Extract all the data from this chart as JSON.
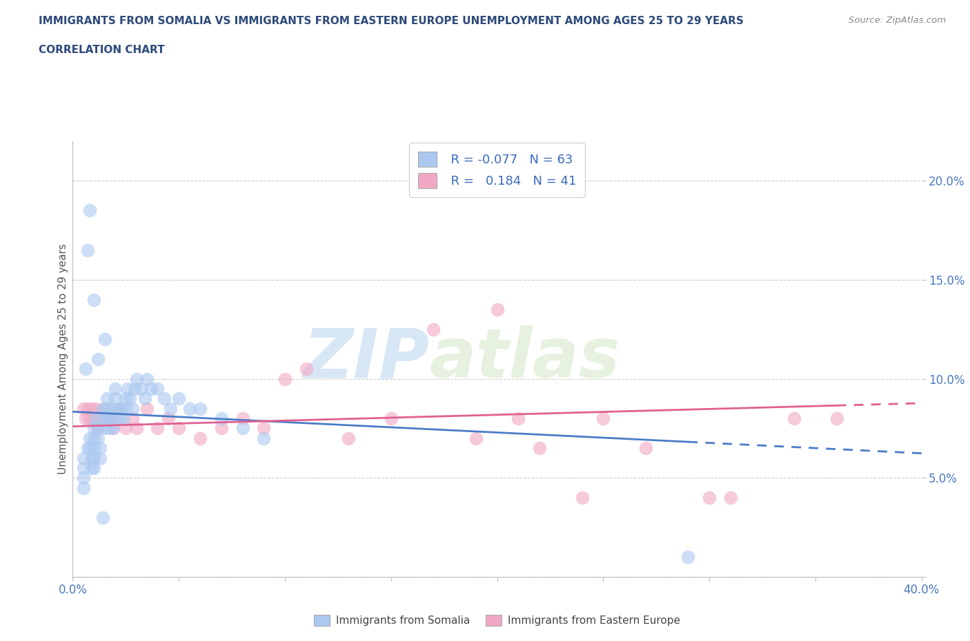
{
  "title_line1": "IMMIGRANTS FROM SOMALIA VS IMMIGRANTS FROM EASTERN EUROPE UNEMPLOYMENT AMONG AGES 25 TO 29 YEARS",
  "title_line2": "CORRELATION CHART",
  "source_text": "Source: ZipAtlas.com",
  "ylabel": "Unemployment Among Ages 25 to 29 years",
  "xlim": [
    0.0,
    0.4
  ],
  "ylim": [
    0.0,
    0.22
  ],
  "watermark_zip": "ZIP",
  "watermark_atlas": "atlas",
  "somalia_color": "#aac8f0",
  "eastern_color": "#f0a8c4",
  "somalia_line_color": "#4a7cc7",
  "eastern_line_color": "#e06090",
  "somalia_R": -0.077,
  "somalia_N": 63,
  "eastern_R": 0.184,
  "eastern_N": 41,
  "background_color": "#ffffff",
  "grid_color": "#cccccc",
  "title_color": "#2e4a7a",
  "tick_color": "#4a7abf",
  "soma_x": [
    0.005,
    0.005,
    0.005,
    0.005,
    0.007,
    0.008,
    0.008,
    0.009,
    0.009,
    0.01,
    0.01,
    0.01,
    0.01,
    0.01,
    0.011,
    0.012,
    0.012,
    0.013,
    0.013,
    0.014,
    0.015,
    0.015,
    0.016,
    0.016,
    0.017,
    0.017,
    0.018,
    0.018,
    0.019,
    0.02,
    0.02,
    0.021,
    0.022,
    0.023,
    0.024,
    0.025,
    0.025,
    0.026,
    0.027,
    0.028,
    0.029,
    0.03,
    0.032,
    0.034,
    0.035,
    0.037,
    0.04,
    0.043,
    0.046,
    0.05,
    0.055,
    0.06,
    0.07,
    0.08,
    0.09,
    0.01,
    0.012,
    0.008,
    0.007,
    0.006,
    0.015,
    0.29,
    0.014
  ],
  "soma_y": [
    0.06,
    0.055,
    0.05,
    0.045,
    0.065,
    0.07,
    0.065,
    0.06,
    0.055,
    0.075,
    0.07,
    0.065,
    0.06,
    0.055,
    0.08,
    0.075,
    0.07,
    0.065,
    0.06,
    0.085,
    0.08,
    0.075,
    0.09,
    0.085,
    0.08,
    0.075,
    0.085,
    0.08,
    0.075,
    0.095,
    0.09,
    0.085,
    0.08,
    0.085,
    0.08,
    0.09,
    0.085,
    0.095,
    0.09,
    0.085,
    0.095,
    0.1,
    0.095,
    0.09,
    0.1,
    0.095,
    0.095,
    0.09,
    0.085,
    0.09,
    0.085,
    0.085,
    0.08,
    0.075,
    0.07,
    0.14,
    0.11,
    0.185,
    0.165,
    0.105,
    0.12,
    0.01,
    0.03
  ],
  "east_x": [
    0.005,
    0.006,
    0.007,
    0.008,
    0.009,
    0.01,
    0.011,
    0.012,
    0.013,
    0.015,
    0.017,
    0.019,
    0.02,
    0.022,
    0.025,
    0.028,
    0.03,
    0.035,
    0.04,
    0.045,
    0.05,
    0.06,
    0.07,
    0.08,
    0.09,
    0.1,
    0.11,
    0.13,
    0.15,
    0.17,
    0.19,
    0.2,
    0.21,
    0.22,
    0.24,
    0.25,
    0.27,
    0.3,
    0.31,
    0.34,
    0.36
  ],
  "east_y": [
    0.085,
    0.08,
    0.085,
    0.08,
    0.085,
    0.08,
    0.085,
    0.075,
    0.08,
    0.085,
    0.08,
    0.075,
    0.08,
    0.085,
    0.075,
    0.08,
    0.075,
    0.085,
    0.075,
    0.08,
    0.075,
    0.07,
    0.075,
    0.08,
    0.075,
    0.1,
    0.105,
    0.07,
    0.08,
    0.125,
    0.07,
    0.135,
    0.08,
    0.065,
    0.04,
    0.08,
    0.065,
    0.04,
    0.04,
    0.08,
    0.08
  ]
}
